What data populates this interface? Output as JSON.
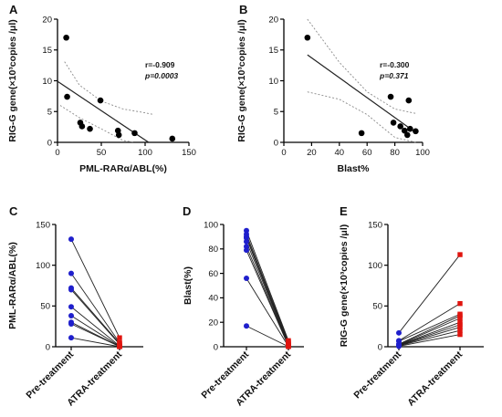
{
  "chart_data": [
    {
      "panel": "A",
      "type": "scatter",
      "xlabel": "PML-RARα/ABL(%)",
      "ylabel": "RIG-G gene(×10³copies /μl)",
      "xlim": [
        0,
        150
      ],
      "ylim": [
        0,
        20
      ],
      "xticks": [
        0,
        50,
        100,
        150
      ],
      "yticks": [
        0,
        5,
        10,
        15,
        20
      ],
      "stats": {
        "r": "r=-0.909",
        "p": "p=0.0003"
      },
      "points": [
        {
          "x": 10,
          "y": 17.0
        },
        {
          "x": 11,
          "y": 7.4
        },
        {
          "x": 26,
          "y": 3.2
        },
        {
          "x": 28,
          "y": 2.6
        },
        {
          "x": 37,
          "y": 2.2
        },
        {
          "x": 49,
          "y": 6.8
        },
        {
          "x": 69,
          "y": 1.9
        },
        {
          "x": 70,
          "y": 1.2
        },
        {
          "x": 88,
          "y": 1.5
        },
        {
          "x": 131,
          "y": 0.6
        }
      ],
      "fit": {
        "x0": 0,
        "y0": 9.9,
        "x1": 104,
        "y1": 0.0
      },
      "ci_upper": [
        [
          8,
          13.1
        ],
        [
          25,
          9.3
        ],
        [
          50,
          6.7
        ],
        [
          75,
          5.4
        ],
        [
          100,
          4.8
        ],
        [
          110,
          4.5
        ]
      ],
      "ci_lower": [
        [
          3,
          6.0
        ],
        [
          25,
          4.0
        ],
        [
          50,
          2.2
        ],
        [
          75,
          0.3
        ],
        [
          88,
          0.0
        ]
      ]
    },
    {
      "panel": "B",
      "type": "scatter",
      "xlabel": "Blast%",
      "ylabel": "RIG-G gene(×10³copies /μl)",
      "xlim": [
        0,
        100
      ],
      "ylim": [
        0,
        20
      ],
      "xticks": [
        0,
        20,
        40,
        60,
        80,
        100
      ],
      "yticks": [
        0,
        5,
        10,
        15,
        20
      ],
      "stats": {
        "r": "r=-0.300",
        "p": "p=0.371"
      },
      "points": [
        {
          "x": 17,
          "y": 17.0
        },
        {
          "x": 56,
          "y": 1.5
        },
        {
          "x": 77,
          "y": 7.4
        },
        {
          "x": 79,
          "y": 3.2
        },
        {
          "x": 84,
          "y": 2.6
        },
        {
          "x": 87,
          "y": 1.9
        },
        {
          "x": 89,
          "y": 1.2
        },
        {
          "x": 90,
          "y": 6.8
        },
        {
          "x": 91,
          "y": 2.2
        },
        {
          "x": 95,
          "y": 1.8
        }
      ],
      "fit": {
        "x0": 17,
        "y0": 14.2,
        "x1": 95,
        "y1": 1.6
      },
      "ci_upper": [
        [
          17,
          20.5
        ],
        [
          40,
          13.0
        ],
        [
          60,
          8.2
        ],
        [
          80,
          5.4
        ],
        [
          95,
          4.7
        ]
      ],
      "ci_lower": [
        [
          17,
          8.2
        ],
        [
          40,
          7.0
        ],
        [
          60,
          4.5
        ],
        [
          80,
          0.8
        ],
        [
          95,
          -1.2
        ]
      ]
    },
    {
      "panel": "C",
      "type": "paired",
      "ylabel": "PML-RARα/ABL(%)",
      "categories": [
        "Pre-treatment",
        "ATRA-treatment"
      ],
      "ylim": [
        0,
        150
      ],
      "yticks": [
        0,
        50,
        100,
        150
      ],
      "pre": [
        132,
        90,
        72,
        70,
        49,
        38,
        30,
        28,
        11
      ],
      "post": [
        11,
        5,
        4,
        3,
        1,
        0.5,
        0.3,
        0.2,
        0.1
      ]
    },
    {
      "panel": "D",
      "type": "paired",
      "ylabel": "Blast(%)",
      "categories": [
        "Pre-treatment",
        "ATRA-treatment"
      ],
      "ylim": [
        0,
        100
      ],
      "yticks": [
        0,
        20,
        40,
        60,
        80,
        100
      ],
      "pre": [
        95,
        92,
        90,
        89,
        86,
        82,
        79,
        56,
        17
      ],
      "post": [
        5,
        4,
        3,
        2,
        1.5,
        1,
        0.5,
        0.3,
        0.1
      ]
    },
    {
      "panel": "E",
      "type": "paired",
      "ylabel": "RIG-G gene(×10³copies /μl)",
      "categories": [
        "Pre-treatment",
        "ATRA-treatment"
      ],
      "ylim": [
        0,
        150
      ],
      "yticks": [
        0,
        50,
        100,
        150
      ],
      "pre": [
        17,
        7.4,
        6.8,
        3.2,
        2.6,
        2.2,
        1.9,
        1.5,
        1.2,
        0.6
      ],
      "post": [
        113,
        53,
        40,
        38,
        35,
        30,
        27,
        24,
        20,
        15
      ]
    }
  ],
  "colors": {
    "pre": "#1f1fcc",
    "post": "#e0140e",
    "point": "#000000",
    "line": "#222222",
    "ci": "#8a8a8a"
  }
}
